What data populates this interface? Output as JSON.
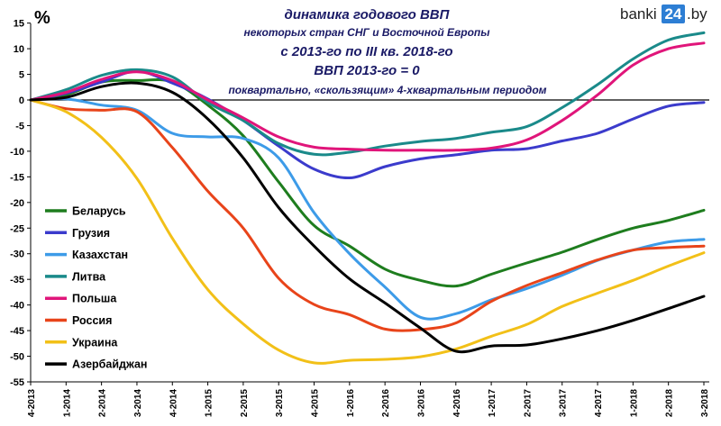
{
  "brand": {
    "prefix": "banki",
    "number": "24",
    "suffix": ".by"
  },
  "chart_data": {
    "type": "line",
    "unit": "%",
    "title": "динамика годового ВВП",
    "subtitle_lines": [
      "некоторых стран СНГ и Восточной Европы",
      "с 2013-го по III кв. 2018-го",
      "ВВП 2013-го = 0",
      "поквартально, «скользящим» 4-хквартальным периодом"
    ],
    "ylim": [
      -55,
      17
    ],
    "yticks": [
      15,
      10,
      5,
      0,
      -5,
      -10,
      -15,
      -20,
      -25,
      -30,
      -35,
      -40,
      -45,
      -50,
      -55
    ],
    "categories": [
      "4-2013",
      "1-2014",
      "2-2014",
      "3-2014",
      "4-2014",
      "1-2015",
      "2-2015",
      "3-2015",
      "4-2015",
      "1-2016",
      "2-2016",
      "3-2016",
      "4-2016",
      "1-2017",
      "2-2017",
      "3-2017",
      "4-2017",
      "1-2018",
      "2-2018",
      "3-2018"
    ],
    "grid": false,
    "legend_position": "left",
    "series": [
      {
        "name": "Беларусь",
        "color": "#1e7d1e",
        "values": [
          0,
          1,
          3.5,
          3.8,
          3.5,
          -1,
          -7,
          -16,
          -24.5,
          -28.5,
          -33,
          -35.2,
          -36.3,
          -34,
          -31.8,
          -29.7,
          -27.2,
          -25,
          -23.5,
          -21.5
        ]
      },
      {
        "name": "Грузия",
        "color": "#3b3bcc",
        "values": [
          0,
          1.3,
          3.5,
          5.6,
          3.3,
          0.2,
          -4,
          -9,
          -13.5,
          -15.2,
          -13,
          -11.5,
          -10.7,
          -9.8,
          -9.5,
          -8,
          -6.5,
          -3.7,
          -1.2,
          -0.5
        ]
      },
      {
        "name": "Казахстан",
        "color": "#3d9be8",
        "values": [
          0,
          0.2,
          -1,
          -2,
          -6.5,
          -7.2,
          -7.5,
          -11.3,
          -22,
          -30,
          -36.5,
          -42.4,
          -41.7,
          -39,
          -36.8,
          -34.2,
          -31.3,
          -29.3,
          -27.7,
          -27.2
        ]
      },
      {
        "name": "Литва",
        "color": "#1a8a8a",
        "values": [
          0,
          2,
          4.8,
          5.9,
          4.5,
          -0.5,
          -4,
          -8.5,
          -10.6,
          -10.2,
          -9,
          -8.1,
          -7.5,
          -6.3,
          -5.2,
          -1.5,
          3,
          8,
          11.7,
          13.1
        ]
      },
      {
        "name": "Польша",
        "color": "#e0157a",
        "values": [
          0,
          1.5,
          4,
          5.5,
          3.8,
          0,
          -3.5,
          -7.2,
          -9.2,
          -9.6,
          -9.8,
          -9.8,
          -9.8,
          -9.4,
          -7.8,
          -4,
          1,
          6.8,
          10,
          11.1
        ]
      },
      {
        "name": "Россия",
        "color": "#e8441a",
        "values": [
          0,
          -1.7,
          -2,
          -2.3,
          -9.3,
          -17.8,
          -25,
          -34.8,
          -39.9,
          -41.9,
          -44.7,
          -44.8,
          -43.5,
          -39.3,
          -36.2,
          -33.7,
          -31.2,
          -29.3,
          -28.8,
          -28.5
        ]
      },
      {
        "name": "Украина",
        "color": "#f2c018",
        "values": [
          0,
          -2.3,
          -7.3,
          -15.3,
          -27,
          -37,
          -43.7,
          -48.8,
          -51.3,
          -50.8,
          -50.6,
          -50.1,
          -48.6,
          -46.1,
          -43.8,
          -40.3,
          -37.7,
          -35.2,
          -32.4,
          -29.8
        ]
      },
      {
        "name": "Азербайджан",
        "color": "#000000",
        "values": [
          0,
          0.5,
          2.6,
          3.3,
          1.5,
          -3.7,
          -11.3,
          -21,
          -28.5,
          -34.9,
          -39.6,
          -44.5,
          -49,
          -48,
          -47.8,
          -46.6,
          -45,
          -43,
          -40.7,
          -38.3
        ]
      }
    ]
  }
}
